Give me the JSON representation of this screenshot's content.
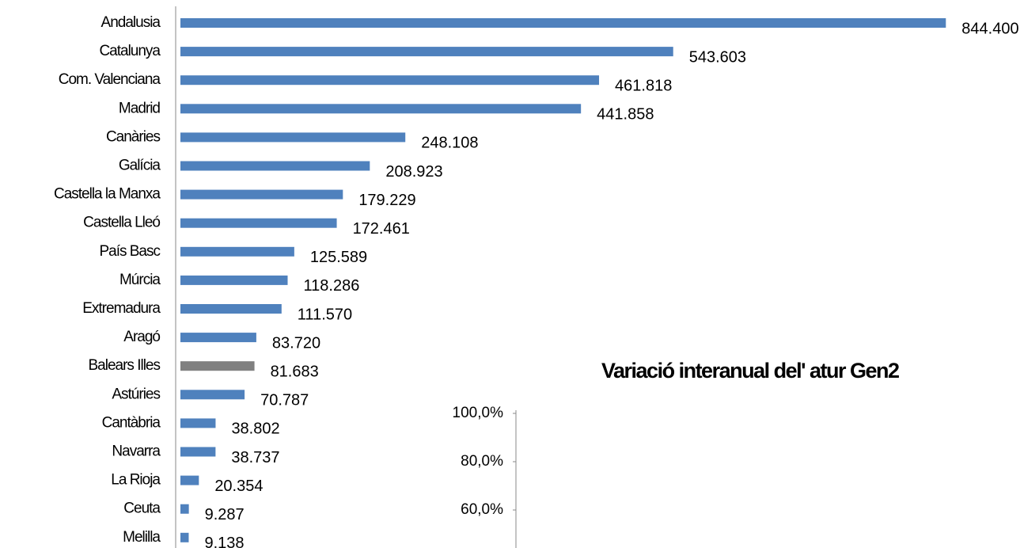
{
  "chart_data": [
    {
      "type": "hbar",
      "categories": [
        "Andalusia",
        "Catalunya",
        "Com. Valenciana",
        "Madrid",
        "Canàries",
        "Galícia",
        "Castella la Manxa",
        "Castella Lleó",
        "País Basc",
        "Múrcia",
        "Extremadura",
        "Aragó",
        "Balears Illes",
        "Astúries",
        "Cantàbria",
        "Navarra",
        "La Rioja",
        "Ceuta",
        "Melilla"
      ],
      "values": [
        844400,
        543603,
        461818,
        441858,
        248108,
        208923,
        179229,
        172461,
        125589,
        118286,
        111570,
        83720,
        81683,
        70787,
        38802,
        38737,
        20354,
        9287,
        9138
      ],
      "value_labels": [
        "844.400",
        "543.603",
        "461.818",
        "441.858",
        "248.108",
        "208.923",
        "179.229",
        "172.461",
        "125.589",
        "118.286",
        "111.570",
        "83.720",
        "81.683",
        "70.787",
        "38.802",
        "38.737",
        "20.354",
        "9.287",
        "9.138"
      ],
      "colors": [
        "#4f81bd",
        "#4f81bd",
        "#4f81bd",
        "#4f81bd",
        "#4f81bd",
        "#4f81bd",
        "#4f81bd",
        "#4f81bd",
        "#4f81bd",
        "#4f81bd",
        "#4f81bd",
        "#4f81bd",
        "#808080",
        "#4f81bd",
        "#4f81bd",
        "#4f81bd",
        "#4f81bd",
        "#4f81bd",
        "#4f81bd"
      ],
      "xlim": [
        0,
        900000
      ]
    },
    {
      "type": "line",
      "title": "Variació interanual del' atur Gen2",
      "ylim": [
        60,
        100
      ],
      "yticks": [
        {
          "value": 100,
          "label": "100,0%"
        },
        {
          "value": 80,
          "label": "80,0%"
        },
        {
          "value": 60,
          "label": "60,0%"
        }
      ]
    }
  ]
}
